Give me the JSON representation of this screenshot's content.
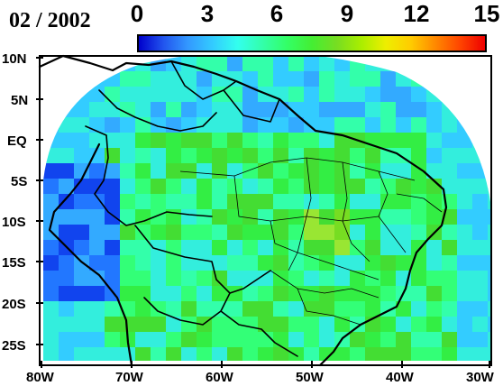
{
  "title": "02 / 2002",
  "colorbar": {
    "ticks": [
      "0",
      "3",
      "6",
      "9",
      "12",
      "15"
    ],
    "stops": [
      "#0000cc",
      "#2255ee",
      "#3399ff",
      "#33ccff",
      "#33ffee",
      "#33ffaa",
      "#33ff66",
      "#44ee33",
      "#77dd22",
      "#aaee00",
      "#eeee00",
      "#ffcc00",
      "#ff8800",
      "#ff4400",
      "#ee0000"
    ]
  },
  "y_labels": [
    "10N",
    "5N",
    "EQ",
    "5S",
    "10S",
    "15S",
    "20S",
    "25S"
  ],
  "x_labels": [
    "80W",
    "70W",
    "60W",
    "50W",
    "40W",
    "30W"
  ],
  "colors": {
    "ocean": "#33ccff",
    "land_base": "#33ff66",
    "border": "#000000",
    "blank": "#ffffff"
  }
}
